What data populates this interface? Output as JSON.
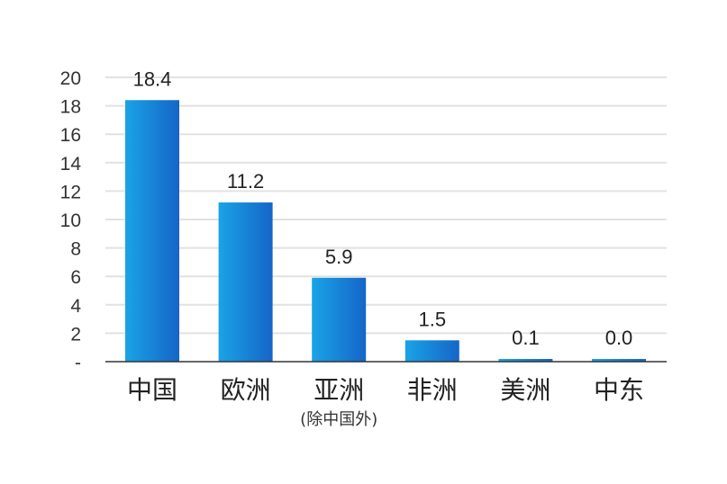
{
  "chart_data": {
    "type": "bar",
    "categories": [
      "中国",
      "欧洲",
      "亚洲",
      "非洲",
      "美洲",
      "中东"
    ],
    "category_notes": [
      "",
      "",
      "(除中国外)",
      "",
      "",
      ""
    ],
    "values": [
      18.4,
      11.2,
      5.9,
      1.5,
      0.1,
      0.0
    ],
    "value_labels": [
      "18.4",
      "11.2",
      "5.9",
      "1.5",
      "0.1",
      "0.0"
    ],
    "y_ticks": [
      0,
      2,
      4,
      6,
      8,
      10,
      12,
      14,
      16,
      18,
      20
    ],
    "y_tick_labels": [
      "-",
      "2",
      "4",
      "6",
      "8",
      "10",
      "12",
      "14",
      "16",
      "18",
      "20"
    ],
    "ylim": [
      0,
      20
    ],
    "grid": true,
    "title": "",
    "xlabel": "",
    "ylabel": "",
    "colors": {
      "bar_left": "#1aa3e6",
      "bar_right": "#1565c8",
      "grid": "#e2e2e2",
      "axis": "#333333"
    }
  }
}
